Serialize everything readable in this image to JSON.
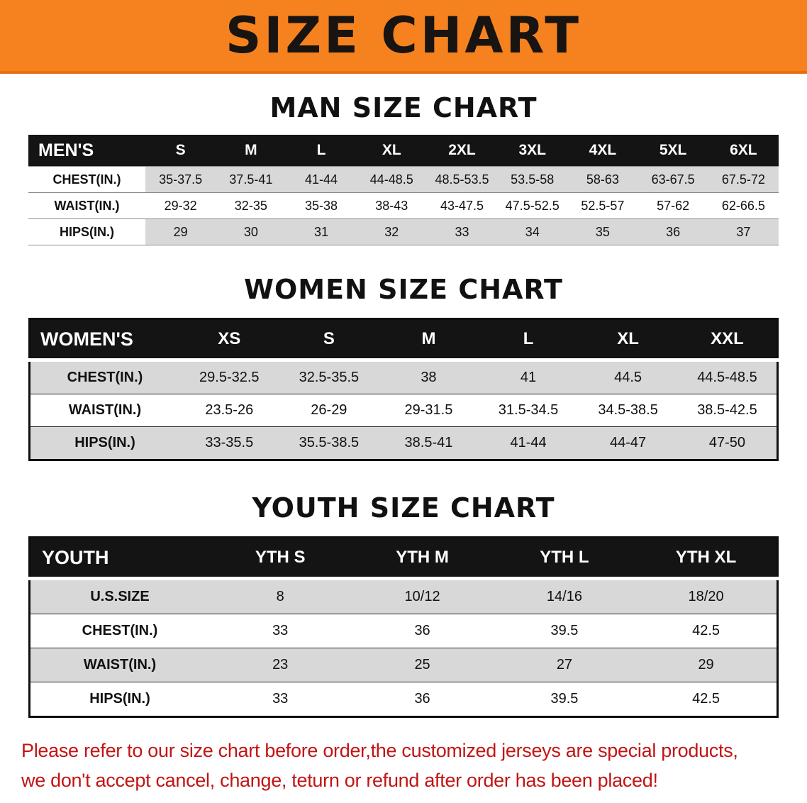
{
  "banner": {
    "title": "SIZE CHART",
    "bg_color": "#f5821f"
  },
  "men": {
    "heading": "MAN SIZE CHART",
    "table": {
      "header": [
        "MEN'S",
        "S",
        "M",
        "L",
        "XL",
        "2XL",
        "3XL",
        "4XL",
        "5XL",
        "6XL"
      ],
      "rows": [
        [
          "CHEST(IN.)",
          "35-37.5",
          "37.5-41",
          "41-44",
          "44-48.5",
          "48.5-53.5",
          "53.5-58",
          "58-63",
          "63-67.5",
          "67.5-72"
        ],
        [
          "WAIST(IN.)",
          "29-32",
          "32-35",
          "35-38",
          "38-43",
          "43-47.5",
          "47.5-52.5",
          "52.5-57",
          "57-62",
          "62-66.5"
        ],
        [
          "HIPS(IN.)",
          "29",
          "30",
          "31",
          "32",
          "33",
          "34",
          "35",
          "36",
          "37"
        ]
      ]
    }
  },
  "women": {
    "heading": "WOMEN SIZE CHART",
    "table": {
      "header": [
        "WOMEN'S",
        "XS",
        "S",
        "M",
        "L",
        "XL",
        "XXL"
      ],
      "rows": [
        [
          "CHEST(IN.)",
          "29.5-32.5",
          "32.5-35.5",
          "38",
          "41",
          "44.5",
          "44.5-48.5"
        ],
        [
          "WAIST(IN.)",
          "23.5-26",
          "26-29",
          "29-31.5",
          "31.5-34.5",
          "34.5-38.5",
          "38.5-42.5"
        ],
        [
          "HIPS(IN.)",
          "33-35.5",
          "35.5-38.5",
          "38.5-41",
          "41-44",
          "44-47",
          "47-50"
        ]
      ]
    }
  },
  "youth": {
    "heading": "YOUTH SIZE CHART",
    "table": {
      "header": [
        "YOUTH",
        "YTH S",
        "YTH M",
        "YTH L",
        "YTH XL"
      ],
      "rows": [
        [
          "U.S.SIZE",
          "8",
          "10/12",
          "14/16",
          "18/20"
        ],
        [
          "CHEST(IN.)",
          "33",
          "36",
          "39.5",
          "42.5"
        ],
        [
          "WAIST(IN.)",
          "23",
          "25",
          "27",
          "29"
        ],
        [
          "HIPS(IN.)",
          "33",
          "36",
          "39.5",
          "42.5"
        ]
      ]
    }
  },
  "footer": {
    "line1": "Please refer to our size chart before order,the customized jerseys are special products,",
    "line2": "we don't accept cancel, change, teturn or refund after order has been placed!"
  },
  "colors": {
    "banner_orange": "#f5821f",
    "header_black": "#141414",
    "stripe_gray": "#d8d8d8",
    "footer_red": "#c21414"
  }
}
